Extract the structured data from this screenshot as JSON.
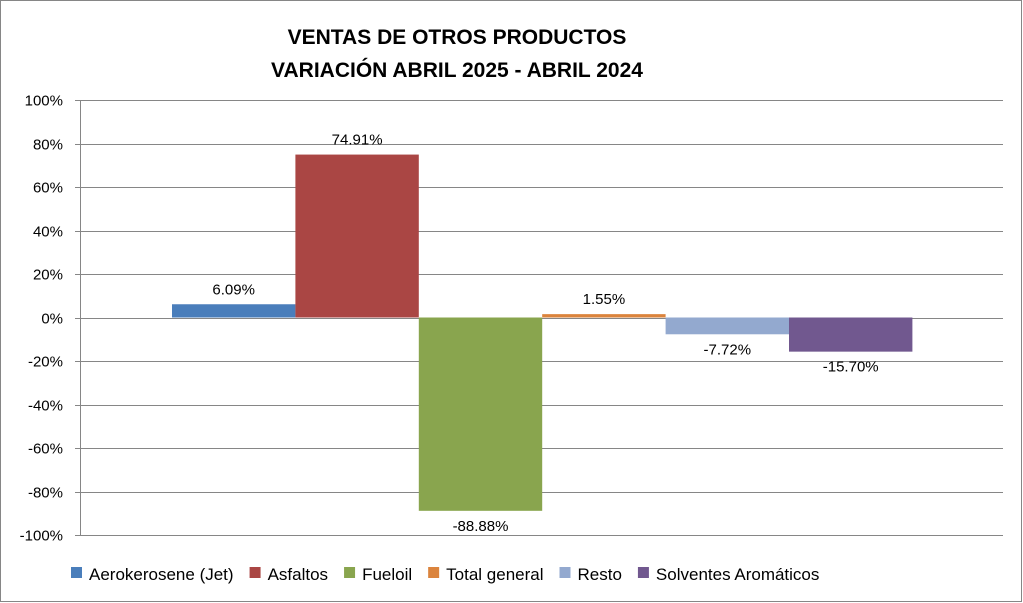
{
  "chart_data": {
    "type": "bar",
    "title": [
      "VENTAS DE OTROS PRODUCTOS",
      "VARIACIÓN ABRIL 2025 - ABRIL 2024"
    ],
    "xlabel": "",
    "ylabel": "",
    "ylim": [
      -100,
      100
    ],
    "yticks": [
      100,
      80,
      60,
      40,
      20,
      0,
      -20,
      -40,
      -60,
      -80,
      -100
    ],
    "ytick_labels": [
      "100%",
      "80%",
      "60%",
      "40%",
      "20%",
      "0%",
      "-20%",
      "-40%",
      "-60%",
      "-80%",
      "-100%"
    ],
    "grid": true,
    "legend_position": "bottom",
    "series": [
      {
        "name": "Aerokerosene (Jet)",
        "value": 6.09,
        "label": "6.09%",
        "color": "#4A7EBB"
      },
      {
        "name": "Asfaltos",
        "value": 74.91,
        "label": "74.91%",
        "color": "#AA4644"
      },
      {
        "name": "Fueloil",
        "value": -88.88,
        "label": "-88.88%",
        "color": "#89A54E"
      },
      {
        "name": "Total general",
        "value": 1.55,
        "label": "1.55%",
        "color": "#DB843D"
      },
      {
        "name": "Resto",
        "value": -7.72,
        "label": "-7.72%",
        "color": "#93A9CF"
      },
      {
        "name": "Solventes Aromáticos",
        "value": -15.7,
        "label": "-15.70%",
        "color": "#71588F"
      }
    ]
  }
}
